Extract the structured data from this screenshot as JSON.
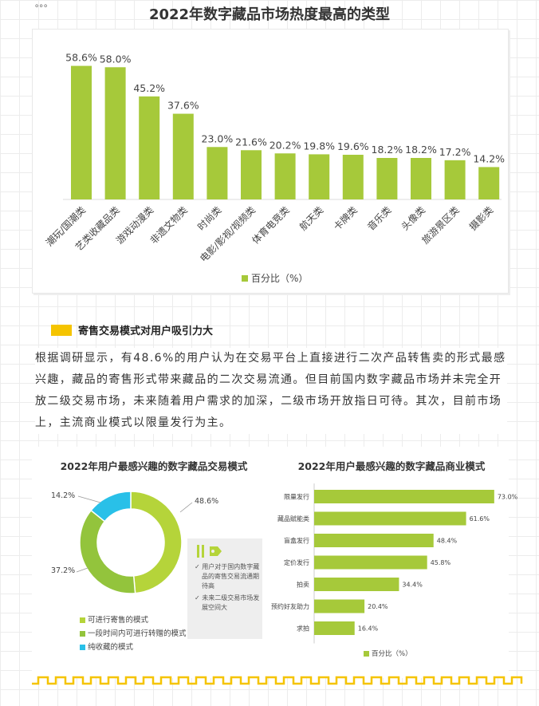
{
  "top_chart": {
    "title": "2022年数字藏品市场热度最高的类型",
    "legend": "百分比（%）",
    "color": "#a6c93a",
    "chart_data": {
      "type": "bar",
      "title": "2022年数字藏品市场热度最高的类型",
      "categories": [
        "潮玩/国潮类",
        "艺类收藏品类",
        "游戏动漫类",
        "非遗文物类",
        "时尚类",
        "电影/影视/视频类",
        "体育电竞类",
        "航天类",
        "卡牌类",
        "音乐类",
        "头像类",
        "旅游景区类",
        "摄影类"
      ],
      "series": [
        {
          "name": "百分比（%）",
          "values": [
            58.6,
            58.0,
            45.2,
            37.6,
            23.0,
            21.6,
            20.2,
            19.8,
            19.6,
            18.2,
            18.2,
            17.2,
            14.2
          ]
        }
      ],
      "value_labels": [
        "58.6%",
        "58.0%",
        "45.2%",
        "37.6%",
        "23.0%",
        "21.6%",
        "20.2%",
        "19.8%",
        "19.6%",
        "18.2%",
        "18.2%",
        "17.2%",
        "14.2%"
      ],
      "ylim": [
        0,
        70
      ]
    }
  },
  "section": {
    "heading": "寄售交易模式对用户吸引力大",
    "paragraph": "根据调研显示，有48.6%的用户认为在交易平台上直接进行二次产品转售卖的形式最感兴趣，藏品的寄售形式带来藏品的二次交易流通。但目前国内数字藏品市场并未完全开放二级交易市场，未来随着用户需求的加深，二级市场开放指日可待。其次，目前市场上，主流商业模式以限量发行为主。"
  },
  "pie_chart": {
    "title": "2022年用户最感兴趣的数字藏品交易模式",
    "chart_data": {
      "type": "pie",
      "title": "2022年用户最感兴趣的数字藏品交易模式",
      "categories": [
        "可进行寄售的模式",
        "一段时间内可进行转赠的模式",
        "纯收藏的模式"
      ],
      "values": [
        48.6,
        37.2,
        14.2
      ],
      "value_labels": [
        "48.6%",
        "37.2%",
        "14.2%"
      ],
      "colors": [
        "#b5d43a",
        "#93c43c",
        "#29c0e8"
      ]
    },
    "note": [
      "✓ 用户对于国内数字藏品的寄售交易流通期待高",
      "✓ 未来二级交易市场发展空间大"
    ]
  },
  "bar_chart": {
    "title": "2022年用户最感兴趣的数字藏品商业模式",
    "legend": "百分比（%）",
    "color": "#a6c93a",
    "chart_data": {
      "type": "bar",
      "orientation": "horizontal",
      "title": "2022年用户最感兴趣的数字藏品商业模式",
      "categories": [
        "限量发行",
        "藏品赋能类",
        "盲盒发行",
        "定价发行",
        "拍卖",
        "预约好友助力",
        "求拍"
      ],
      "series": [
        {
          "name": "百分比（%）",
          "values": [
            73.0,
            61.6,
            48.4,
            45.8,
            34.4,
            20.4,
            16.4
          ]
        }
      ],
      "value_labels": [
        "73.0%",
        "61.6%",
        "48.4%",
        "45.8%",
        "34.4%",
        "20.4%",
        "16.4%"
      ],
      "xlim": [
        0,
        80
      ]
    }
  },
  "page": {
    "corner_text": "。。。",
    "accent_color": "#f5c400"
  }
}
